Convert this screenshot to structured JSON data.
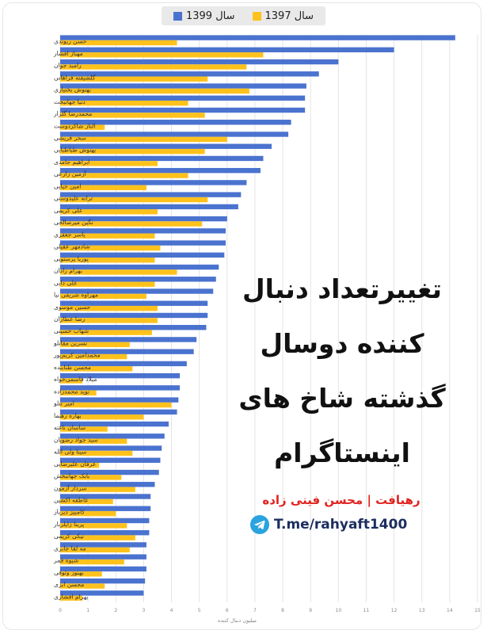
{
  "legend": {
    "series_1399_label": "سال 1399",
    "series_1397_label": "سال 1397"
  },
  "title": "تغییرتعداد دنبال کننده دوسال گذشته شاخ های اینستاگرام",
  "credit": "رهیافت | محسن فینی زاده",
  "channel": "T.me/rahyaft1400",
  "colors": {
    "blue": "#4A72CF",
    "yellow": "#FFC21C"
  },
  "chart_data": {
    "type": "bar",
    "orientation": "horizontal",
    "xlabel": "میلیون دنبال کننده",
    "xlim": [
      0,
      15
    ],
    "xticks": [
      0,
      1,
      2,
      3,
      4,
      5,
      6,
      7,
      8,
      9,
      10,
      11,
      12,
      13,
      14,
      15
    ],
    "grid": true,
    "legend_position": "top",
    "categories": [
      "حسن ریوندی",
      "مهناز افشار",
      "رامبد جوان",
      "گلشیفته فراهانی",
      "بهنوش بختیاری",
      "دنیا جهانبخت",
      "محمدرضا گلزار",
      "الناز شاکردوست",
      "سحر قریشی",
      "بهنوش طباطبایی",
      "ابراهیم حامدی",
      "آزمین زارعی",
      "امین حیایی",
      "ترانه علیدوستی",
      "علی کریمی",
      "نگین میرصالحی",
      "یاسر جعفری",
      "شادمهر عقیلی",
      "پوریا پرستویی",
      "بهرام رادان",
      "علی دایی",
      "مهراوه شریفی نیا",
      "حسین موسوی",
      "رضا عطاران",
      "شهاب حسینی",
      "نسرین مقانلو",
      "محمدامین کریم‌پور",
      "محسن طنابنده",
      "میلاد قاسمی‌خواه",
      "نوید محمدزاده",
      "امیر تتلو",
      "بهاره رهنما",
      "ساسان ناغته",
      "سید جواد رضویان",
      "سینا ولی الله",
      "عرفان علیرضایی",
      "بابک جهانبخش",
      "سردار آزمون",
      "عاطفه اکشین",
      "کامبیز دیرباز",
      "پرینا زاپلزبار",
      "نیکی کریمی",
      "مه لقا جابری",
      "شیوه قمر",
      "بهنوز وثوقی",
      "محسن ابزی",
      "بهرام افشاری"
    ],
    "series": [
      {
        "name": "سال 1399",
        "color": "#4A72CF",
        "values": [
          14.2,
          12.0,
          10.0,
          9.3,
          8.85,
          8.8,
          8.8,
          8.3,
          8.2,
          7.6,
          7.3,
          7.2,
          6.7,
          6.5,
          6.4,
          6.0,
          5.95,
          5.95,
          5.9,
          5.7,
          5.6,
          5.5,
          5.3,
          5.3,
          5.25,
          4.9,
          4.8,
          4.55,
          4.3,
          4.3,
          4.25,
          4.2,
          3.9,
          3.75,
          3.65,
          3.6,
          3.55,
          3.4,
          3.25,
          3.25,
          3.2,
          3.2,
          3.1,
          3.1,
          3.1,
          3.05,
          3.0
        ]
      },
      {
        "name": "سال 1397",
        "color": "#FFC21C",
        "values": [
          4.2,
          7.3,
          6.7,
          5.3,
          6.8,
          4.6,
          5.2,
          1.6,
          6.0,
          5.2,
          3.5,
          4.6,
          3.1,
          5.3,
          3.5,
          5.1,
          3.4,
          3.6,
          3.4,
          4.2,
          3.4,
          3.1,
          3.5,
          3.5,
          3.3,
          2.5,
          2.4,
          2.6,
          0.8,
          1.3,
          4.0,
          3.0,
          1.7,
          2.4,
          2.6,
          1.4,
          2.2,
          2.7,
          1.9,
          2.0,
          2.4,
          2.7,
          2.5,
          2.3,
          1.5,
          1.6,
          0.8
        ]
      }
    ]
  }
}
